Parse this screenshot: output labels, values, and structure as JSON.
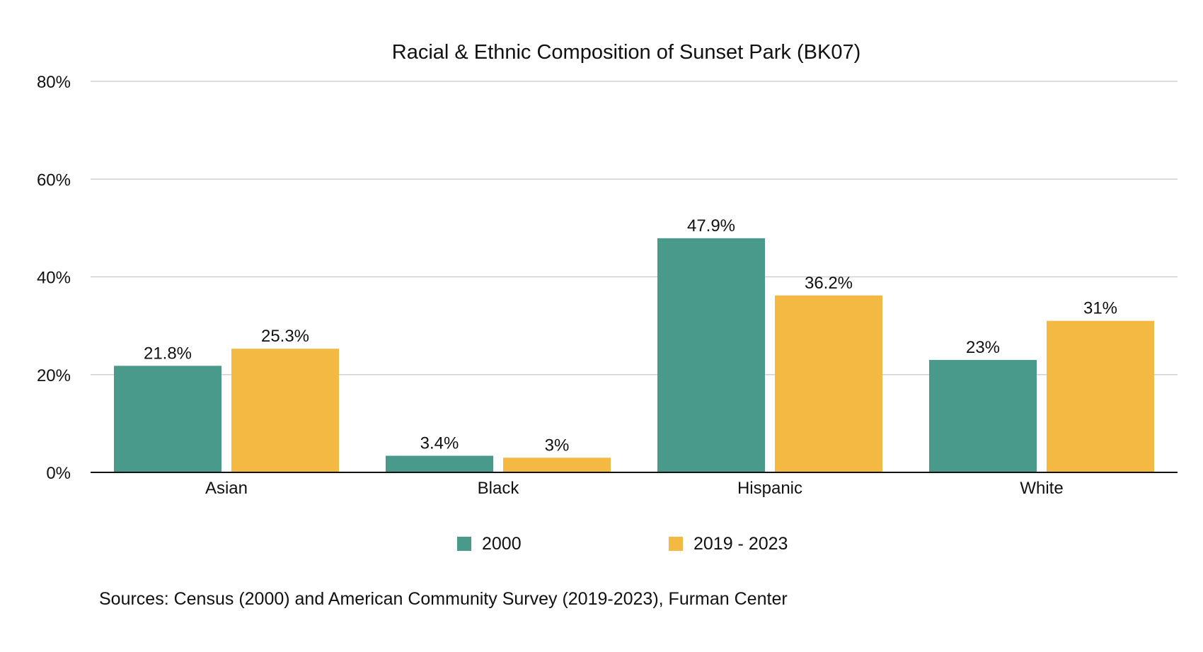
{
  "chart_data": {
    "type": "bar",
    "title": "Racial & Ethnic Composition of Sunset Park (BK07)",
    "xlabel": "",
    "ylabel": "",
    "categories": [
      "Asian",
      "Black",
      "Hispanic",
      "White"
    ],
    "series": [
      {
        "name": "2000",
        "values": [
          21.8,
          3.4,
          47.9,
          23
        ],
        "labels": [
          "21.8%",
          "3.4%",
          "47.9%",
          "23%"
        ],
        "color": "#4a9a8b"
      },
      {
        "name": "2019 - 2023",
        "values": [
          25.3,
          3,
          36.2,
          31
        ],
        "labels": [
          "25.3%",
          "3%",
          "36.2%",
          "31%"
        ],
        "color": "#f4b942"
      }
    ],
    "ylim": [
      0,
      80
    ],
    "yticks": [
      0,
      20,
      40,
      60,
      80
    ],
    "ytick_labels": [
      "0%",
      "20%",
      "40%",
      "60%",
      "80%"
    ],
    "grid": true,
    "legend_position": "bottom-center",
    "source": "Sources: Census (2000) and American Community Survey (2019-2023), Furman Center"
  }
}
